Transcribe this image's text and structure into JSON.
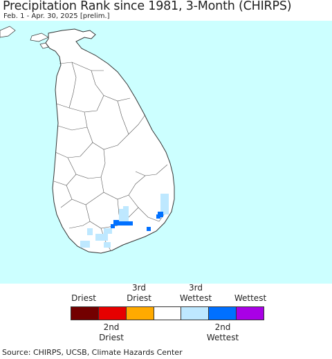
{
  "header": {
    "title": "Precipitation Rank since 1981, 3-Month (CHIRPS)",
    "subtitle": "Feb. 1 - Apr. 30, 2025 [prelim.]"
  },
  "map": {
    "ocean_color": "#ccffff",
    "land_color": "#ffffff",
    "border_color": "#333333"
  },
  "legend": {
    "top_labels": [
      {
        "text": "Driest"
      },
      {
        "text": "3rd\nDriest"
      },
      {
        "text": "3rd\nWettest"
      },
      {
        "text": "Wettest"
      }
    ],
    "bottom_labels": [
      {
        "text": "2nd\nDriest"
      },
      {
        "text": "2nd\nWettest"
      }
    ],
    "colors": [
      "#730000",
      "#e60000",
      "#ffaa00",
      "#ffffff",
      "#bee8ff",
      "#0070ff",
      "#a900e6"
    ]
  },
  "footer": {
    "source": "Source: CHIRPS, UCSB, Climate Hazards Center"
  }
}
